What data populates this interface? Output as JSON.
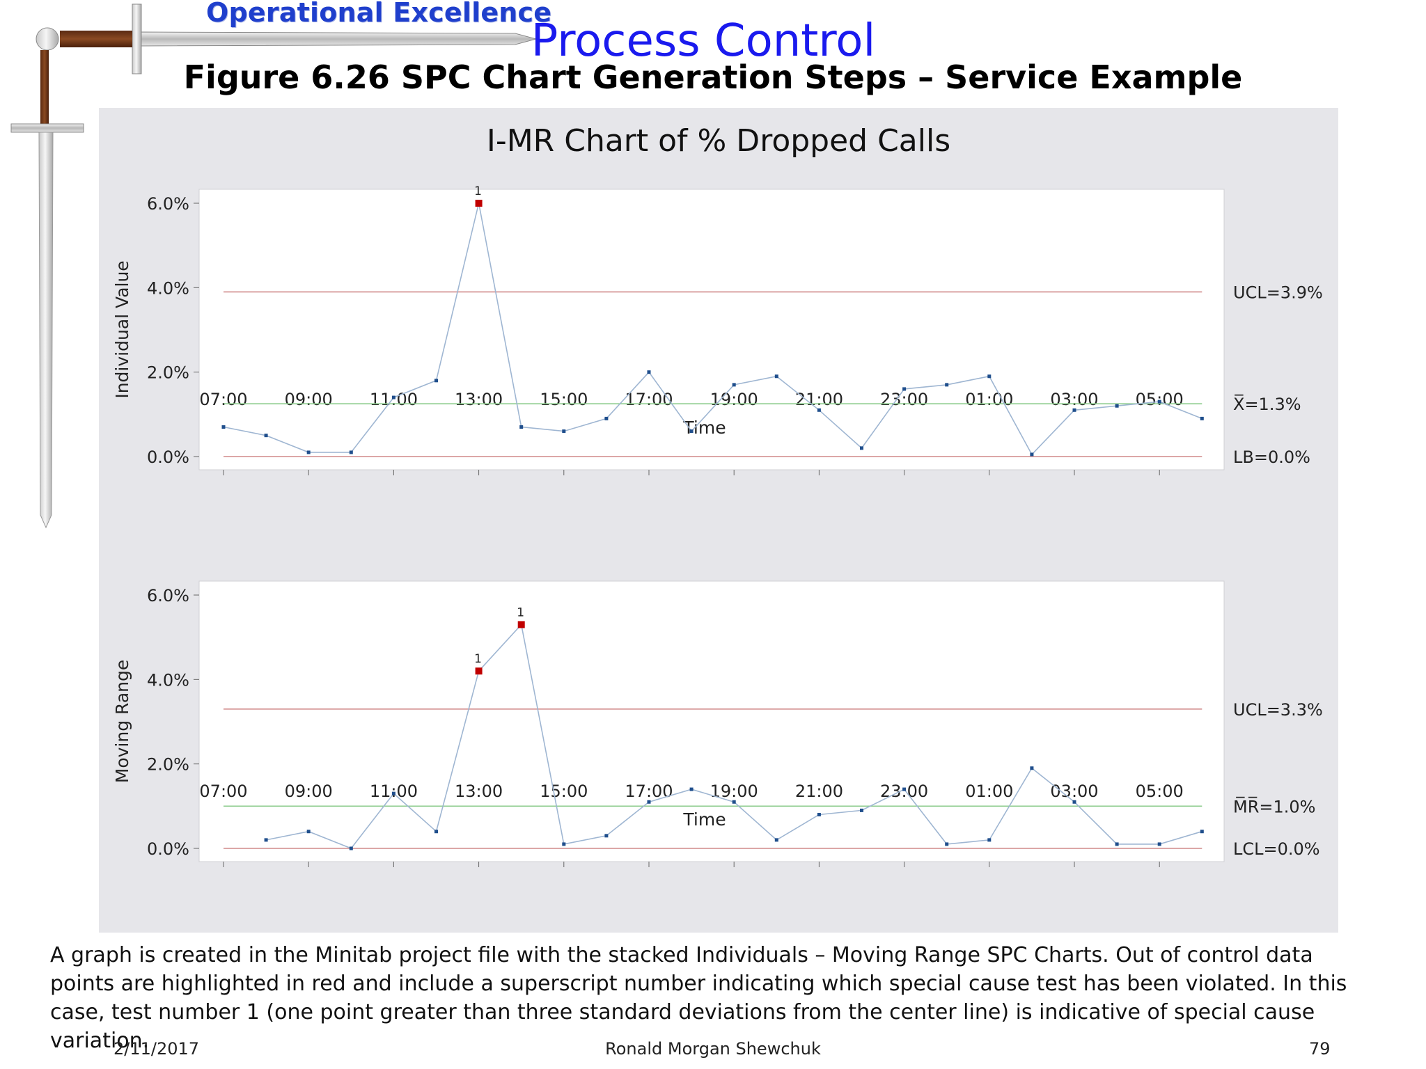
{
  "header": {
    "banner": "Operational Excellence",
    "title": "Process Control",
    "subtitle": "Figure 6.26  SPC Chart Generation Steps – Service Example"
  },
  "decoration": {
    "icon": "sword-icon"
  },
  "colors": {
    "panel_bg": "#e6e6ea",
    "plot_bg": "#ffffff",
    "line": "#9fb6d2",
    "point": "#1f4e8c",
    "out_of_control": "#c00000",
    "control_limit": "#d08a8a",
    "center_line": "#8ccc8c"
  },
  "chart_data": {
    "type": "line",
    "title": "I-MR Chart of % Dropped Calls",
    "x_tick_labels": [
      "07:00",
      "09:00",
      "11:00",
      "13:00",
      "15:00",
      "17:00",
      "19:00",
      "21:00",
      "23:00",
      "01:00",
      "03:00",
      "05:00"
    ],
    "x": [
      "07:00",
      "08:00",
      "09:00",
      "10:00",
      "11:00",
      "12:00",
      "13:00",
      "14:00",
      "15:00",
      "16:00",
      "17:00",
      "18:00",
      "19:00",
      "20:00",
      "21:00",
      "22:00",
      "23:00",
      "00:00",
      "01:00",
      "02:00",
      "03:00",
      "04:00",
      "05:00",
      "06:00"
    ],
    "grid": false,
    "panels": [
      {
        "name": "individuals",
        "xlabel": "Time",
        "ylabel": "Individual Value",
        "y_tick_labels": [
          "6.0%",
          "4.0%",
          "2.0%",
          "0.0%"
        ],
        "y_ticks": [
          6.0,
          4.0,
          2.0,
          0.0
        ],
        "ylim": [
          0.0,
          6.35
        ],
        "values": [
          0.7,
          0.5,
          0.1,
          0.1,
          1.4,
          1.8,
          6.0,
          0.7,
          0.6,
          0.9,
          2.0,
          0.6,
          1.7,
          1.9,
          1.1,
          0.2,
          1.6,
          1.7,
          1.9,
          0.05,
          1.1,
          1.2,
          1.3,
          0.9
        ],
        "out_of_control": [
          {
            "index": 6,
            "test": "1"
          }
        ],
        "limits": [
          {
            "kind": "ucl",
            "value": 3.9,
            "label": "UCL=3.9%"
          },
          {
            "kind": "center",
            "value": 1.25,
            "label": "X̅=1.3%"
          },
          {
            "kind": "lcl",
            "value": 0.0,
            "label": "LB=0.0%"
          }
        ]
      },
      {
        "name": "moving-range",
        "xlabel": "Time",
        "ylabel": "Moving Range",
        "y_tick_labels": [
          "6.0%",
          "4.0%",
          "2.0%",
          "0.0%"
        ],
        "y_ticks": [
          6.0,
          4.0,
          2.0,
          0.0
        ],
        "ylim": [
          0.0,
          6.35
        ],
        "values": [
          null,
          0.2,
          0.4,
          0.0,
          1.3,
          0.4,
          4.2,
          5.3,
          0.1,
          0.3,
          1.1,
          1.4,
          1.1,
          0.2,
          0.8,
          0.9,
          1.4,
          0.1,
          0.2,
          1.9,
          1.1,
          0.1,
          0.1,
          0.4
        ],
        "out_of_control": [
          {
            "index": 6,
            "test": "1"
          },
          {
            "index": 7,
            "test": "1"
          }
        ],
        "limits": [
          {
            "kind": "ucl",
            "value": 3.3,
            "label": "UCL=3.3%"
          },
          {
            "kind": "center",
            "value": 1.0,
            "label": "M̅R̅=1.0%"
          },
          {
            "kind": "lcl",
            "value": 0.0,
            "label": "LCL=0.0%"
          }
        ]
      }
    ]
  },
  "caption": "A graph is created in the Minitab project file with the stacked Individuals – Moving Range SPC Charts.  Out of control data points are highlighted in red and include a superscript number indicating which special cause test has been violated.  In this case, test number 1 (one point greater than three standard deviations from the center line) is indicative of special cause variation.",
  "footer": {
    "date": "2/11/2017",
    "author": "Ronald Morgan Shewchuk",
    "page": "79"
  }
}
